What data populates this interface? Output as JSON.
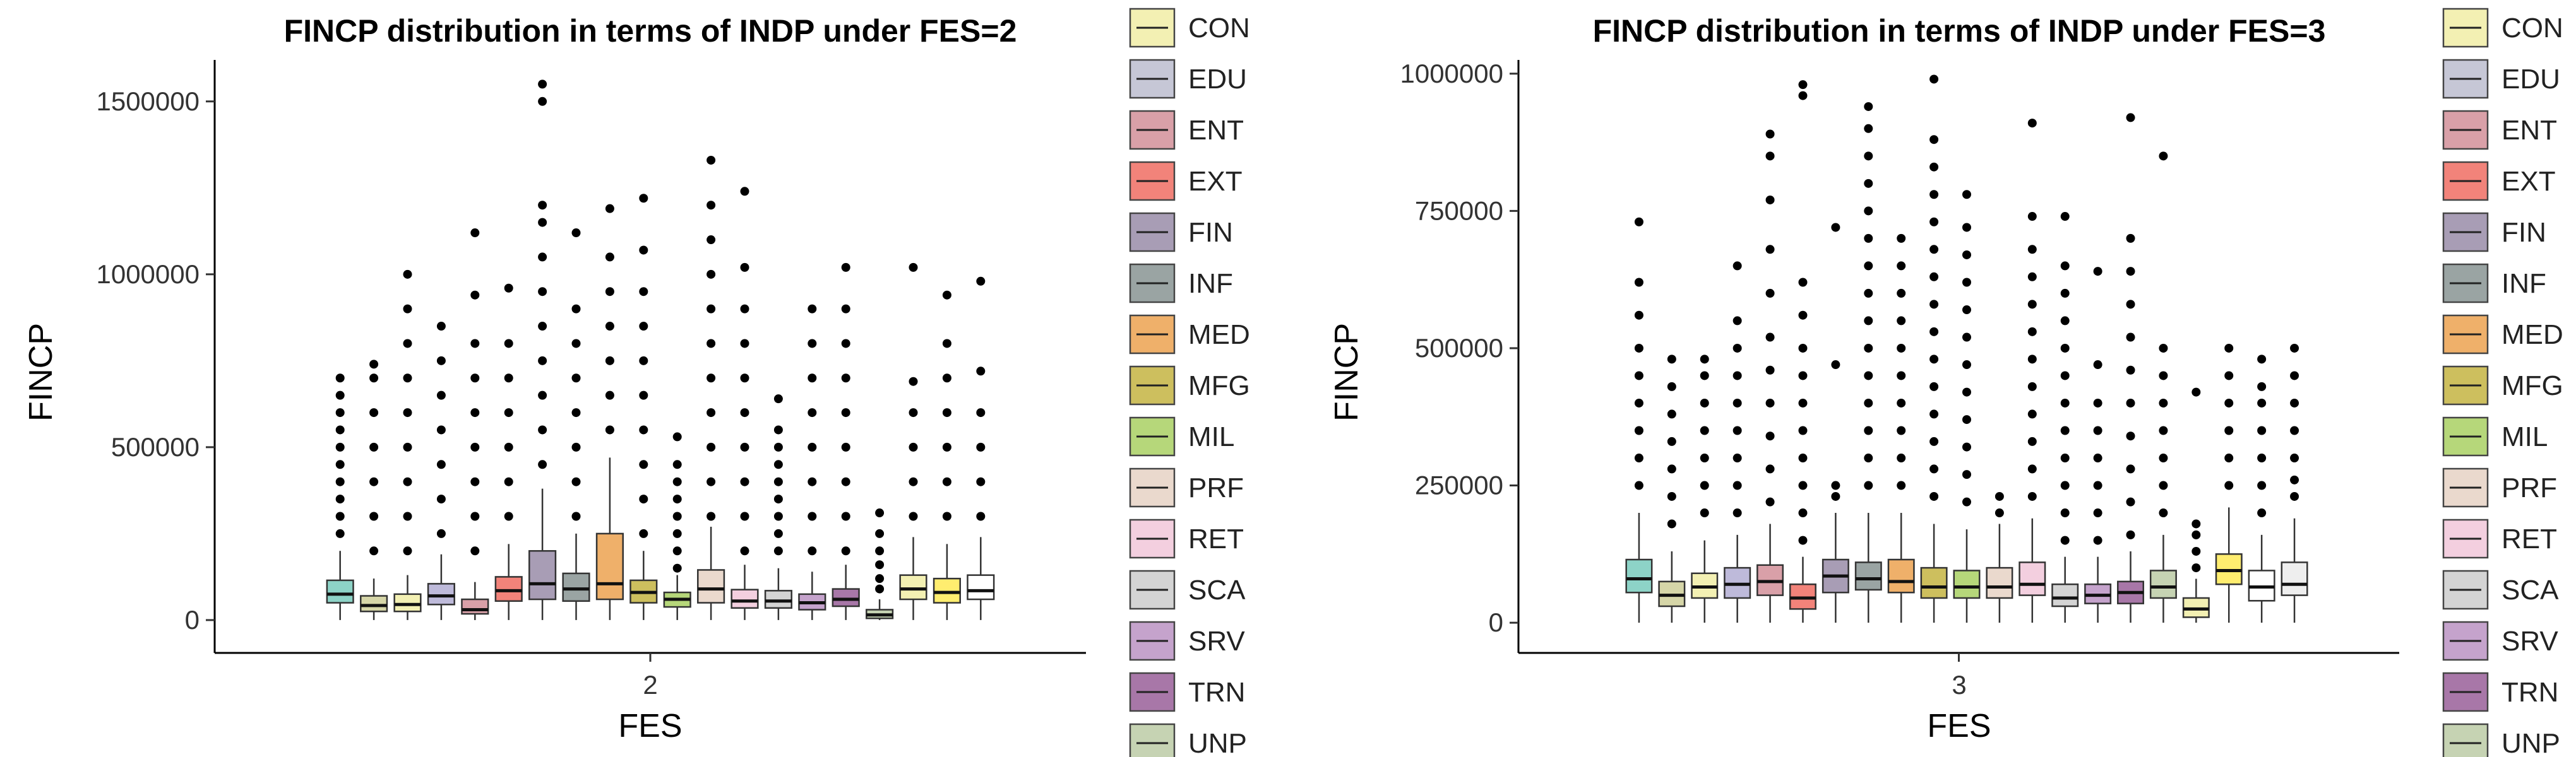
{
  "chart_data": [
    {
      "type": "boxplot",
      "title": "FINCP distribution in terms of INDP under FES=2",
      "xlabel": "FES",
      "ylabel": "FINCP",
      "x_category": "2",
      "ylim": [
        -95000,
        1620000
      ],
      "yticks": [
        0,
        500000,
        1000000,
        1500000
      ],
      "legend_position": "right",
      "series": [
        {
          "name": "CON",
          "min": 0,
          "q1": 50000,
          "median": 75000,
          "q3": 115000,
          "max": 200000,
          "outliers": [
            250000,
            300000,
            350000,
            400000,
            450000,
            500000,
            550000,
            600000,
            650000,
            700000
          ]
        },
        {
          "name": "EDU",
          "min": 0,
          "q1": 25000,
          "median": 42000,
          "q3": 70000,
          "max": 120000,
          "outliers": [
            200000,
            300000,
            400000,
            500000,
            600000,
            700000,
            740000
          ]
        },
        {
          "name": "ENT",
          "min": 0,
          "q1": 25000,
          "median": 45000,
          "q3": 75000,
          "max": 130000,
          "outliers": [
            200000,
            300000,
            400000,
            500000,
            600000,
            700000,
            800000,
            900000,
            1000000
          ]
        },
        {
          "name": "EXT",
          "min": 0,
          "q1": 45000,
          "median": 70000,
          "q3": 105000,
          "max": 190000,
          "outliers": [
            250000,
            350000,
            450000,
            550000,
            650000,
            750000,
            850000
          ]
        },
        {
          "name": "FIN",
          "min": 0,
          "q1": 18000,
          "median": 30000,
          "q3": 60000,
          "max": 110000,
          "outliers": [
            200000,
            300000,
            400000,
            500000,
            600000,
            700000,
            800000,
            940000,
            1120000
          ]
        },
        {
          "name": "INF",
          "min": 0,
          "q1": 55000,
          "median": 85000,
          "q3": 125000,
          "max": 220000,
          "outliers": [
            300000,
            400000,
            500000,
            600000,
            700000,
            800000,
            960000
          ]
        },
        {
          "name": "MED",
          "min": 0,
          "q1": 60000,
          "median": 105000,
          "q3": 200000,
          "max": 380000,
          "outliers": [
            450000,
            550000,
            650000,
            750000,
            850000,
            950000,
            1050000,
            1150000,
            1200000,
            1500000,
            1550000
          ]
        },
        {
          "name": "MFG",
          "min": 0,
          "q1": 55000,
          "median": 90000,
          "q3": 135000,
          "max": 250000,
          "outliers": [
            300000,
            400000,
            500000,
            600000,
            700000,
            800000,
            900000,
            1120000
          ]
        },
        {
          "name": "MIL",
          "min": 0,
          "q1": 60000,
          "median": 105000,
          "q3": 250000,
          "max": 470000,
          "outliers": [
            550000,
            650000,
            750000,
            850000,
            950000,
            1050000,
            1190000
          ]
        },
        {
          "name": "PRF",
          "min": 0,
          "q1": 50000,
          "median": 80000,
          "q3": 115000,
          "max": 200000,
          "outliers": [
            250000,
            350000,
            450000,
            550000,
            650000,
            750000,
            850000,
            950000,
            1070000,
            1220000
          ]
        },
        {
          "name": "RET",
          "min": 0,
          "q1": 38000,
          "median": 60000,
          "q3": 80000,
          "max": 130000,
          "outliers": [
            150000,
            200000,
            250000,
            300000,
            350000,
            400000,
            450000,
            530000
          ]
        },
        {
          "name": "SCA",
          "min": 0,
          "q1": 50000,
          "median": 90000,
          "q3": 145000,
          "max": 270000,
          "outliers": [
            300000,
            400000,
            500000,
            600000,
            700000,
            800000,
            900000,
            1000000,
            1100000,
            1200000,
            1330000
          ]
        },
        {
          "name": "SRV",
          "min": 0,
          "q1": 35000,
          "median": 55000,
          "q3": 88000,
          "max": 160000,
          "outliers": [
            200000,
            300000,
            400000,
            500000,
            600000,
            700000,
            800000,
            900000,
            1020000,
            1240000
          ]
        },
        {
          "name": "TRN",
          "min": 0,
          "q1": 35000,
          "median": 55000,
          "q3": 85000,
          "max": 150000,
          "outliers": [
            200000,
            250000,
            300000,
            350000,
            400000,
            450000,
            500000,
            550000,
            640000
          ]
        },
        {
          "name": "UNP",
          "min": 0,
          "q1": 30000,
          "median": 50000,
          "q3": 75000,
          "max": 140000,
          "outliers": [
            200000,
            300000,
            400000,
            500000,
            600000,
            700000,
            800000,
            900000
          ]
        },
        {
          "name": "",
          "min": 0,
          "q1": 40000,
          "median": 60000,
          "q3": 90000,
          "max": 160000,
          "outliers": [
            200000,
            300000,
            400000,
            500000,
            600000,
            700000,
            800000,
            900000,
            1020000
          ]
        },
        {
          "name": "",
          "min": 0,
          "q1": 5000,
          "median": 15000,
          "q3": 30000,
          "max": 60000,
          "outliers": [
            90000,
            120000,
            160000,
            200000,
            250000,
            310000
          ]
        },
        {
          "name": "",
          "min": 0,
          "q1": 60000,
          "median": 90000,
          "q3": 130000,
          "max": 240000,
          "outliers": [
            300000,
            400000,
            500000,
            600000,
            690000,
            1020000
          ]
        },
        {
          "name": "",
          "min": 0,
          "q1": 50000,
          "median": 80000,
          "q3": 120000,
          "max": 220000,
          "outliers": [
            300000,
            400000,
            500000,
            600000,
            700000,
            800000,
            940000
          ]
        },
        {
          "name": "",
          "min": 0,
          "q1": 60000,
          "median": 85000,
          "q3": 130000,
          "max": 240000,
          "outliers": [
            300000,
            400000,
            500000,
            600000,
            720000,
            980000
          ]
        }
      ]
    },
    {
      "type": "boxplot",
      "title": "FINCP distribution in terms of INDP under FES=3",
      "xlabel": "FES",
      "ylabel": "FINCP",
      "x_category": "3",
      "ylim": [
        -55000,
        1025000
      ],
      "yticks": [
        0,
        250000,
        500000,
        750000,
        1000000
      ],
      "legend_position": "right",
      "series": [
        {
          "name": "CON",
          "min": 0,
          "q1": 55000,
          "median": 80000,
          "q3": 115000,
          "max": 200000,
          "outliers": [
            250000,
            300000,
            350000,
            400000,
            450000,
            500000,
            560000,
            620000,
            730000
          ]
        },
        {
          "name": "EDU",
          "min": 0,
          "q1": 30000,
          "median": 50000,
          "q3": 75000,
          "max": 130000,
          "outliers": [
            180000,
            230000,
            280000,
            330000,
            380000,
            430000,
            480000
          ]
        },
        {
          "name": "ENT",
          "min": 0,
          "q1": 45000,
          "median": 65000,
          "q3": 90000,
          "max": 150000,
          "outliers": [
            200000,
            250000,
            300000,
            350000,
            400000,
            450000,
            480000
          ]
        },
        {
          "name": "EXT",
          "min": 0,
          "q1": 45000,
          "median": 70000,
          "q3": 100000,
          "max": 160000,
          "outliers": [
            200000,
            250000,
            300000,
            350000,
            400000,
            450000,
            500000,
            550000,
            650000
          ]
        },
        {
          "name": "FIN",
          "min": 0,
          "q1": 50000,
          "median": 75000,
          "q3": 105000,
          "max": 180000,
          "outliers": [
            220000,
            280000,
            340000,
            400000,
            460000,
            520000,
            600000,
            680000,
            770000,
            850000,
            890000
          ]
        },
        {
          "name": "INF",
          "min": 0,
          "q1": 25000,
          "median": 45000,
          "q3": 70000,
          "max": 120000,
          "outliers": [
            150000,
            200000,
            250000,
            300000,
            350000,
            400000,
            450000,
            500000,
            560000,
            620000,
            960000,
            980000
          ]
        },
        {
          "name": "MED",
          "min": 0,
          "q1": 55000,
          "median": 85000,
          "q3": 115000,
          "max": 200000,
          "outliers": [
            230000,
            250000,
            470000,
            720000
          ]
        },
        {
          "name": "MFG",
          "min": 0,
          "q1": 60000,
          "median": 80000,
          "q3": 110000,
          "max": 200000,
          "outliers": [
            250000,
            300000,
            350000,
            400000,
            450000,
            500000,
            550000,
            600000,
            650000,
            700000,
            750000,
            800000,
            850000,
            900000,
            940000
          ]
        },
        {
          "name": "MIL",
          "min": 0,
          "q1": 55000,
          "median": 75000,
          "q3": 115000,
          "max": 200000,
          "outliers": [
            250000,
            300000,
            350000,
            400000,
            450000,
            500000,
            550000,
            600000,
            650000,
            700000
          ]
        },
        {
          "name": "PRF",
          "min": 0,
          "q1": 45000,
          "median": 65000,
          "q3": 100000,
          "max": 180000,
          "outliers": [
            230000,
            280000,
            330000,
            380000,
            430000,
            480000,
            530000,
            580000,
            630000,
            680000,
            730000,
            780000,
            830000,
            880000,
            990000
          ]
        },
        {
          "name": "RET",
          "min": 0,
          "q1": 45000,
          "median": 65000,
          "q3": 95000,
          "max": 170000,
          "outliers": [
            220000,
            270000,
            320000,
            370000,
            420000,
            470000,
            520000,
            570000,
            620000,
            670000,
            720000,
            780000
          ]
        },
        {
          "name": "SCA",
          "min": 0,
          "q1": 45000,
          "median": 65000,
          "q3": 100000,
          "max": 180000,
          "outliers": [
            200000,
            230000
          ]
        },
        {
          "name": "SRV",
          "min": 0,
          "q1": 50000,
          "median": 70000,
          "q3": 110000,
          "max": 190000,
          "outliers": [
            230000,
            280000,
            330000,
            380000,
            430000,
            480000,
            530000,
            580000,
            630000,
            680000,
            740000,
            910000
          ]
        },
        {
          "name": "TRN",
          "min": 0,
          "q1": 30000,
          "median": 45000,
          "q3": 70000,
          "max": 120000,
          "outliers": [
            150000,
            200000,
            250000,
            300000,
            350000,
            400000,
            450000,
            500000,
            550000,
            600000,
            650000,
            740000
          ]
        },
        {
          "name": "UNP",
          "min": 0,
          "q1": 35000,
          "median": 50000,
          "q3": 70000,
          "max": 120000,
          "outliers": [
            150000,
            200000,
            250000,
            300000,
            350000,
            400000,
            470000,
            640000
          ]
        },
        {
          "name": "",
          "min": 0,
          "q1": 35000,
          "median": 55000,
          "q3": 75000,
          "max": 130000,
          "outliers": [
            160000,
            220000,
            280000,
            340000,
            400000,
            460000,
            520000,
            580000,
            640000,
            700000,
            920000
          ]
        },
        {
          "name": "",
          "min": 0,
          "q1": 45000,
          "median": 65000,
          "q3": 95000,
          "max": 160000,
          "outliers": [
            200000,
            250000,
            300000,
            350000,
            400000,
            450000,
            500000,
            850000
          ]
        },
        {
          "name": "",
          "min": 0,
          "q1": 10000,
          "median": 25000,
          "q3": 45000,
          "max": 80000,
          "outliers": [
            100000,
            130000,
            160000,
            180000,
            420000
          ]
        },
        {
          "name": "",
          "min": 0,
          "q1": 70000,
          "median": 95000,
          "q3": 125000,
          "max": 210000,
          "outliers": [
            250000,
            300000,
            350000,
            400000,
            450000,
            500000
          ]
        },
        {
          "name": "",
          "min": 0,
          "q1": 40000,
          "median": 65000,
          "q3": 95000,
          "max": 160000,
          "outliers": [
            200000,
            250000,
            300000,
            350000,
            400000,
            430000,
            480000
          ]
        },
        {
          "name": "",
          "min": 0,
          "q1": 50000,
          "median": 70000,
          "q3": 110000,
          "max": 190000,
          "outliers": [
            230000,
            260000,
            300000,
            350000,
            400000,
            450000,
            500000
          ]
        }
      ]
    }
  ],
  "palette": [
    "#8dd3c7",
    "#d6d6a8",
    "#f3f0b3",
    "#bebada",
    "#d9a0a8",
    "#f2837a",
    "#a89db5",
    "#9aa4a3",
    "#efb06a",
    "#cdbf5e",
    "#b6d77a",
    "#ead9cd",
    "#f3cfdf",
    "#d4d4d4",
    "#c5a3cc",
    "#a877a8",
    "#c6d3b3",
    "#f3f0b3",
    "#ffed6f",
    "#ffffff",
    "#eeeeee"
  ],
  "legend": {
    "items": [
      {
        "label": "CON",
        "color": "#f3f0b3"
      },
      {
        "label": "EDU",
        "color": "#c6c7d6"
      },
      {
        "label": "ENT",
        "color": "#d9a0a8"
      },
      {
        "label": "EXT",
        "color": "#f2837a"
      },
      {
        "label": "FIN",
        "color": "#a89db5"
      },
      {
        "label": "INF",
        "color": "#9aa4a3"
      },
      {
        "label": "MED",
        "color": "#efb06a"
      },
      {
        "label": "MFG",
        "color": "#cdbf5e"
      },
      {
        "label": "MIL",
        "color": "#b6d77a"
      },
      {
        "label": "PRF",
        "color": "#ead9cd"
      },
      {
        "label": "RET",
        "color": "#f3cfdf"
      },
      {
        "label": "SCA",
        "color": "#d4d4d4"
      },
      {
        "label": "SRV",
        "color": "#c5a3cc"
      },
      {
        "label": "TRN",
        "color": "#a877a8"
      },
      {
        "label": "UNP",
        "color": "#c6d3b3"
      }
    ]
  }
}
